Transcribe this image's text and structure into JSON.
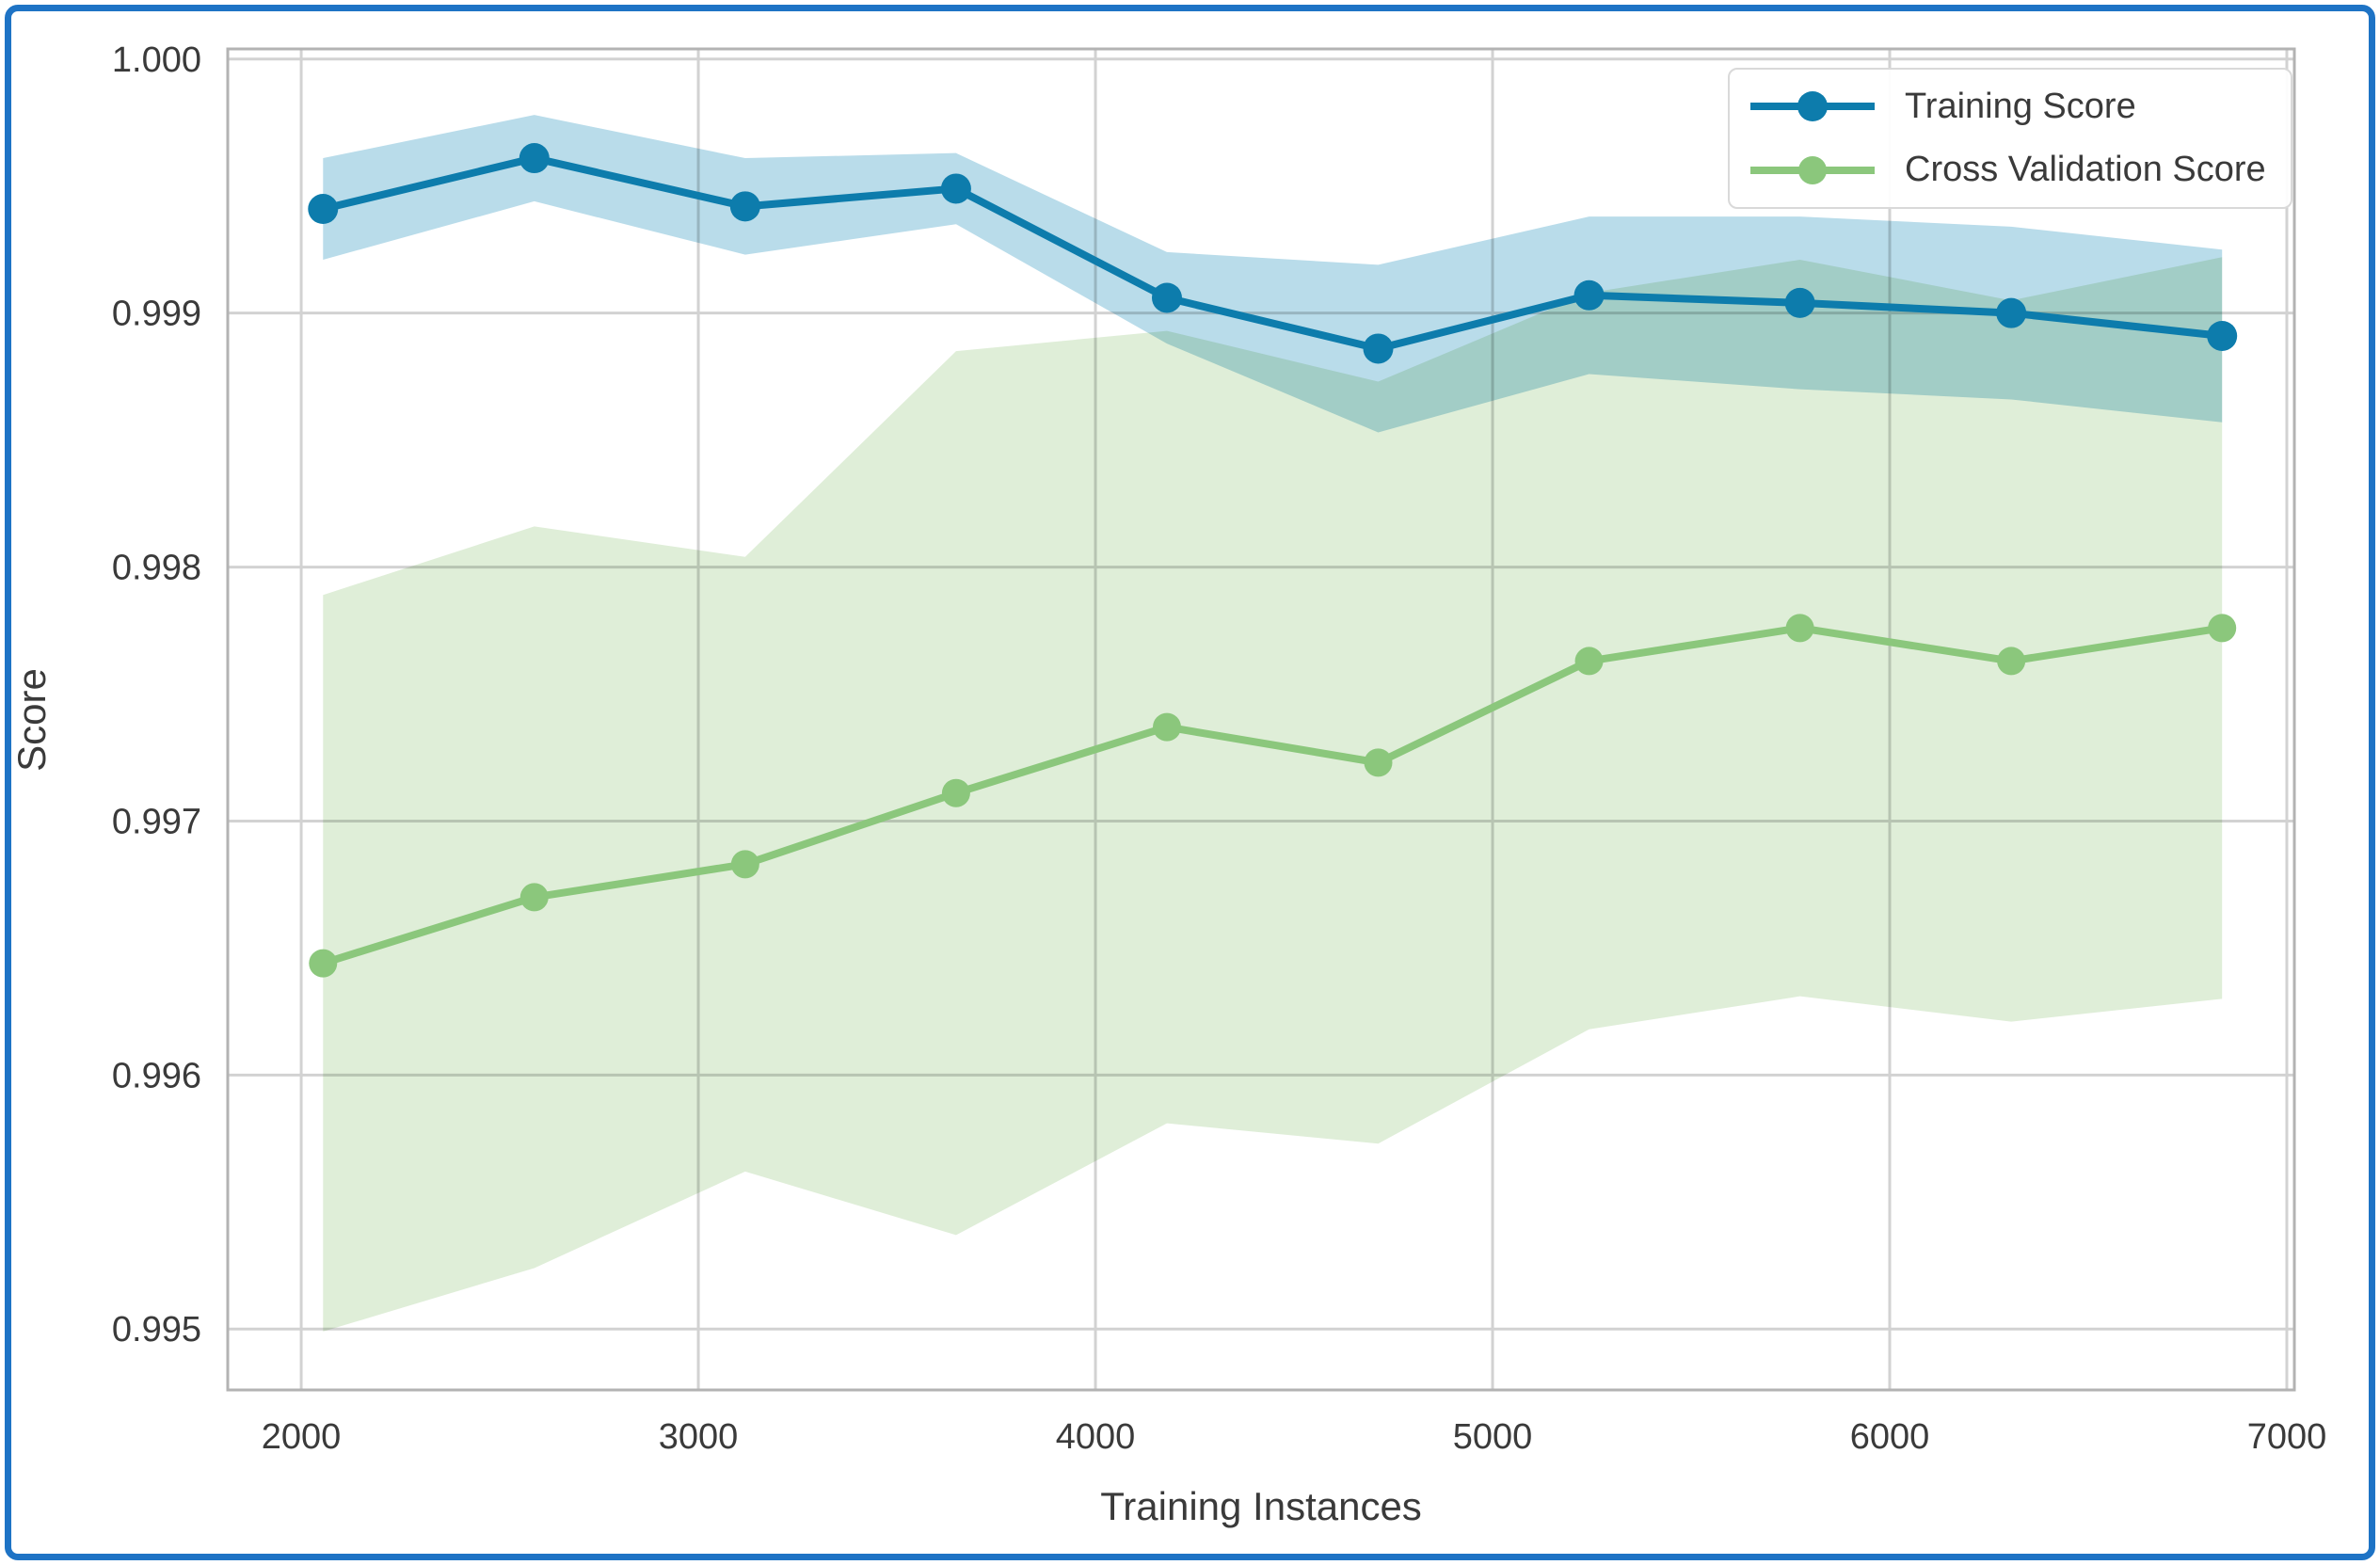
{
  "figure": {
    "border_color": "#1e73c5",
    "background_color": "#ffffff",
    "grid_color": "#d2d2d2",
    "spine_color": "#b3b3b3",
    "text_color": "#3a3a3a"
  },
  "chart_data": {
    "type": "line",
    "title": "",
    "xlabel": "Training Instances",
    "ylabel": "Score",
    "x": [
      2055,
      2587,
      3118,
      3649,
      4180,
      4712,
      5243,
      5774,
      6306,
      6837
    ],
    "series": [
      {
        "name": "Training Score",
        "color": "#0d7cac",
        "band_color": "#b9dcea",
        "values": [
          0.99941,
          0.99961,
          0.99942,
          0.99949,
          0.99906,
          0.99886,
          0.99907,
          0.99904,
          0.999,
          0.99891
        ],
        "std": [
          0.0002,
          0.00017,
          0.00019,
          0.00014,
          0.00018,
          0.00033,
          0.00031,
          0.00034,
          0.00034,
          0.00034
        ]
      },
      {
        "name": "Cross Validation Score",
        "color": "#8bc77c",
        "band_color": "#dfeed8",
        "values": [
          0.99644,
          0.9967,
          0.99683,
          0.99711,
          0.99737,
          0.99723,
          0.99763,
          0.99776,
          0.99763,
          0.99776
        ],
        "std": [
          0.00145,
          0.00146,
          0.00121,
          0.00174,
          0.00156,
          0.0015,
          0.00145,
          0.00145,
          0.00142,
          0.00146
        ]
      }
    ],
    "x_ticks": [
      2000,
      3000,
      4000,
      5000,
      6000,
      7000
    ],
    "y_ticks": [
      1.0,
      0.999,
      0.998,
      0.997,
      0.996,
      0.995
    ],
    "y_tick_labels": [
      "1.000",
      "0.999",
      "0.998",
      "0.997",
      "0.996",
      "0.995"
    ],
    "xlim": [
      1815,
      7019
    ],
    "ylim": [
      0.99476,
      1.00004
    ],
    "grid": true,
    "legend_position": "upper right"
  }
}
